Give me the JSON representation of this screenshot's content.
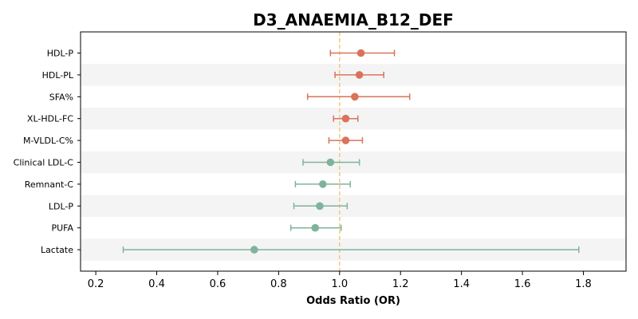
{
  "chart_data": {
    "type": "forest",
    "title": "D3_ANAEMIA_B12_DEF",
    "xlabel": "Odds Ratio (OR)",
    "ylabel": "",
    "xlim": [
      0.15,
      1.94
    ],
    "xticks": [
      0.2,
      0.4,
      0.6,
      0.8,
      1.0,
      1.2,
      1.4,
      1.6,
      1.8
    ],
    "xtick_labels": [
      "0.2",
      "0.4",
      "0.6",
      "0.8",
      "1.0",
      "1.2",
      "1.4",
      "1.6",
      "1.8"
    ],
    "reference_line": 1.0,
    "reference_color": "#f5c77e",
    "stripe_color": "#f4f4f4",
    "colors": {
      "above_one": "#d9735a",
      "below_one": "#7fb39b"
    },
    "rows": [
      {
        "label": "HDL-P",
        "or": 1.07,
        "ci_low": 0.97,
        "ci_high": 1.18
      },
      {
        "label": "HDL-PL",
        "or": 1.065,
        "ci_low": 0.985,
        "ci_high": 1.145
      },
      {
        "label": "SFA%",
        "or": 1.05,
        "ci_low": 0.895,
        "ci_high": 1.23
      },
      {
        "label": "XL-HDL-FC",
        "or": 1.02,
        "ci_low": 0.98,
        "ci_high": 1.06
      },
      {
        "label": "M-VLDL-C%",
        "or": 1.02,
        "ci_low": 0.965,
        "ci_high": 1.075
      },
      {
        "label": "Clinical LDL-C",
        "or": 0.97,
        "ci_low": 0.88,
        "ci_high": 1.065
      },
      {
        "label": "Remnant-C",
        "or": 0.945,
        "ci_low": 0.855,
        "ci_high": 1.035
      },
      {
        "label": "LDL-P",
        "or": 0.935,
        "ci_low": 0.85,
        "ci_high": 1.025
      },
      {
        "label": "PUFA",
        "or": 0.92,
        "ci_low": 0.84,
        "ci_high": 1.005
      },
      {
        "label": "Lactate",
        "or": 0.72,
        "ci_low": 0.29,
        "ci_high": 1.785
      }
    ]
  }
}
